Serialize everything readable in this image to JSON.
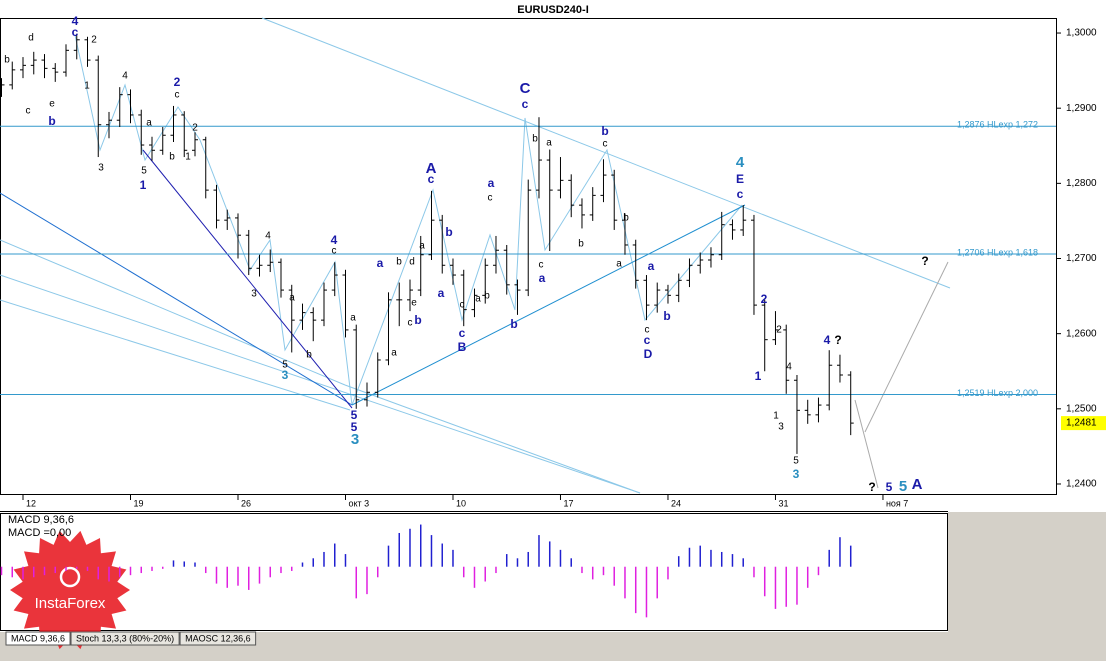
{
  "chart_data": [
    {
      "type": "ohlc",
      "title": "EURUSD240-I",
      "color": "#000000",
      "xlim": [
        -0.14,
        88.05
      ],
      "ylim": [
        1.2388,
        1.302
      ],
      "xticks": [
        {
          "value": 2,
          "label": "12"
        },
        {
          "value": 12,
          "label": "19"
        },
        {
          "value": 22,
          "label": "26"
        },
        {
          "value": 32,
          "label": "окт 3"
        },
        {
          "value": 42,
          "label": "10"
        },
        {
          "value": 52,
          "label": "17"
        },
        {
          "value": 62,
          "label": "24"
        },
        {
          "value": 72,
          "label": "31"
        },
        {
          "value": 82,
          "label": "ноя 7"
        }
      ],
      "yticks": [
        {
          "value": 1.3,
          "label": "1,3000"
        },
        {
          "value": 1.29,
          "label": "1,2900"
        },
        {
          "value": 1.28,
          "label": "1,2800"
        },
        {
          "value": 1.27,
          "label": "1,2700"
        },
        {
          "value": 1.26,
          "label": "1,2600"
        },
        {
          "value": 1.25,
          "label": "1,2500"
        },
        {
          "value": 1.24,
          "label": "1,2400"
        }
      ],
      "open": [
        1.2925,
        1.2931,
        1.2951,
        1.2957,
        1.2964,
        1.2953,
        1.2948,
        1.2977,
        1.2991,
        1.2964,
        1.2878,
        1.2884,
        1.2918,
        1.2891,
        1.2851,
        1.2844,
        1.2864,
        1.2891,
        1.2844,
        1.2858,
        1.2791,
        1.2751,
        1.2754,
        1.2731,
        1.2687,
        1.2691,
        1.2695,
        1.2658,
        1.2618,
        1.2628,
        1.2618,
        1.2658,
        1.2678,
        1.2605,
        1.2512,
        1.2522,
        1.2565,
        1.2645,
        1.2645,
        1.2658,
        1.2705,
        1.2751,
        1.2691,
        1.2678,
        1.2632,
        1.2651,
        1.2691,
        1.2711,
        1.2665,
        1.2658,
        1.2791,
        1.2831,
        1.2791,
        1.2804,
        1.2771,
        1.2758,
        1.2784,
        1.2811,
        1.2751,
        1.2718,
        1.2671,
        1.2638,
        1.2658,
        1.2651,
        1.2671,
        1.2691,
        1.2698,
        1.2705,
        1.2745,
        1.2738,
        1.2751,
        1.2638,
        1.2592,
        1.2605,
        1.2538,
        1.2498,
        1.2492,
        1.2505,
        1.2558,
        1.2545
      ],
      "high": [
        1.294,
        1.2962,
        1.2968,
        1.2975,
        1.2972,
        1.296,
        1.2985,
        1.2999,
        1.2995,
        1.297,
        1.2895,
        1.2928,
        1.2925,
        1.2898,
        1.2862,
        1.2875,
        1.2903,
        1.2896,
        1.2868,
        1.2862,
        1.2798,
        1.2765,
        1.276,
        1.2738,
        1.2705,
        1.2712,
        1.27,
        1.2665,
        1.264,
        1.2635,
        1.2668,
        1.2695,
        1.2685,
        1.2612,
        1.2535,
        1.2575,
        1.2655,
        1.2668,
        1.2672,
        1.273,
        1.279,
        1.2758,
        1.27,
        1.2685,
        1.266,
        1.27,
        1.273,
        1.2718,
        1.2672,
        1.2805,
        1.2888,
        1.2845,
        1.2835,
        1.2812,
        1.278,
        1.2795,
        1.2832,
        1.2818,
        1.276,
        1.2725,
        1.2678,
        1.2668,
        1.2665,
        1.268,
        1.27,
        1.2708,
        1.2715,
        1.2762,
        1.2752,
        1.2771,
        1.2758,
        1.2645,
        1.263,
        1.2612,
        1.2545,
        1.2512,
        1.2515,
        1.2578,
        1.2572,
        1.255
      ],
      "low": [
        1.2915,
        1.2925,
        1.294,
        1.2945,
        1.294,
        1.2935,
        1.2942,
        1.2965,
        1.2955,
        1.2835,
        1.286,
        1.2875,
        1.288,
        1.2838,
        1.283,
        1.2838,
        1.2855,
        1.2835,
        1.2836,
        1.278,
        1.274,
        1.2738,
        1.27,
        1.2678,
        1.2676,
        1.2682,
        1.2648,
        1.2575,
        1.2605,
        1.259,
        1.261,
        1.265,
        1.2595,
        1.25,
        1.2503,
        1.2515,
        1.2558,
        1.261,
        1.263,
        1.265,
        1.2698,
        1.268,
        1.2665,
        1.261,
        1.2622,
        1.264,
        1.268,
        1.2652,
        1.2625,
        1.265,
        1.278,
        1.271,
        1.278,
        1.2755,
        1.274,
        1.275,
        1.2775,
        1.2738,
        1.2705,
        1.266,
        1.2618,
        1.2628,
        1.264,
        1.2642,
        1.2662,
        1.268,
        1.2688,
        1.2698,
        1.2725,
        1.273,
        1.2625,
        1.255,
        1.2585,
        1.252,
        1.244,
        1.248,
        1.2482,
        1.2498,
        1.2535,
        1.2465
      ],
      "close": [
        1.2931,
        1.2951,
        1.2957,
        1.2964,
        1.2953,
        1.2948,
        1.2977,
        1.2991,
        1.2964,
        1.2878,
        1.2884,
        1.2918,
        1.2891,
        1.2851,
        1.2844,
        1.2864,
        1.2891,
        1.2844,
        1.2858,
        1.2791,
        1.2751,
        1.2754,
        1.2731,
        1.2687,
        1.2691,
        1.2695,
        1.2658,
        1.2618,
        1.2628,
        1.2618,
        1.2658,
        1.2678,
        1.2605,
        1.2512,
        1.2522,
        1.2565,
        1.2645,
        1.2645,
        1.2658,
        1.2705,
        1.2751,
        1.2691,
        1.2678,
        1.2632,
        1.2651,
        1.2691,
        1.2711,
        1.2665,
        1.2658,
        1.2791,
        1.2831,
        1.2791,
        1.2804,
        1.2771,
        1.2758,
        1.2784,
        1.2811,
        1.2751,
        1.2718,
        1.2671,
        1.2638,
        1.2658,
        1.2651,
        1.2671,
        1.2691,
        1.2698,
        1.2705,
        1.2745,
        1.2738,
        1.2751,
        1.2638,
        1.2592,
        1.2605,
        1.2538,
        1.2498,
        1.2492,
        1.2505,
        1.2558,
        1.2545,
        1.2481
      ],
      "current_price": {
        "value": 1.2481,
        "label": "1,2481"
      },
      "levels": [
        {
          "value": 1.2876,
          "label": "1,2876 HLexp 1,272"
        },
        {
          "value": 1.2706,
          "label": "1,2706 HLexp 1,618"
        },
        {
          "value": 1.2519,
          "label": "1,2519 HLexp 2,000"
        }
      ],
      "level_color": "#3399cc",
      "wave_labels": [
        "d",
        "b",
        "c",
        "e",
        "4",
        "c",
        "b",
        "2",
        "1",
        "4",
        "3",
        "a",
        "2",
        "c",
        "2",
        "b",
        "1",
        "5",
        "1",
        "4",
        "3",
        "a",
        "b",
        "5",
        "3",
        "4",
        "c",
        "a",
        "5",
        "5",
        "3",
        "a",
        "a",
        "b",
        "c",
        "d",
        "b",
        "e",
        "A",
        "c",
        "a",
        "b",
        "a",
        "c",
        "c",
        "B",
        "a",
        "a",
        "c",
        "b",
        "b",
        "C",
        "c",
        "b",
        "a",
        "c",
        "a",
        "b",
        "b",
        "c",
        "b",
        "a",
        "a",
        "c",
        "c",
        "b",
        "D",
        "4",
        "E",
        "c",
        "2",
        "2",
        "1",
        "1",
        "4",
        "3",
        "5",
        "3",
        "4",
        "?",
        "?",
        "?",
        "5",
        "5",
        "A"
      ]
    },
    {
      "type": "histogram_bar",
      "title": "MACD 9,36,6",
      "subtitle": "MACD =0,00",
      "ylim": [
        -0.006,
        0.005
      ],
      "pos_color": "#2020d0",
      "neg_color": "#e020e0",
      "values": [
        -0.0008,
        -0.001,
        -0.0012,
        -0.001,
        -0.0008,
        -0.0006,
        -0.0004,
        -0.0002,
        -0.0004,
        -0.0012,
        -0.0014,
        -0.001,
        -0.0008,
        -0.0006,
        -0.0004,
        -0.0002,
        0.0006,
        0.0005,
        0.0004,
        -0.0006,
        -0.0016,
        -0.002,
        -0.0018,
        -0.0022,
        -0.0016,
        -0.001,
        -0.0006,
        -0.0004,
        0.0004,
        0.0008,
        0.0014,
        0.0022,
        0.0012,
        -0.003,
        -0.0026,
        -0.001,
        0.002,
        0.0032,
        0.0036,
        0.004,
        0.003,
        0.0022,
        0.0016,
        -0.001,
        -0.002,
        -0.0014,
        -0.0006,
        0.0012,
        0.0008,
        0.0014,
        0.003,
        0.0024,
        0.0016,
        0.0008,
        -0.0006,
        -0.0012,
        -0.0008,
        -0.0018,
        -0.003,
        -0.0044,
        -0.0048,
        -0.003,
        -0.0012,
        0.001,
        0.0018,
        0.002,
        0.0016,
        0.0014,
        0.0012,
        0.0008,
        -0.001,
        -0.0028,
        -0.004,
        -0.0038,
        -0.0036,
        -0.002,
        -0.0008,
        0.0016,
        0.0028,
        0.002
      ]
    }
  ],
  "tabs": [
    "MACD 9,36,6",
    "Stoch 13,3,3 (80%-20%)",
    "MAOSC 12,36,6"
  ],
  "logo": "InstaForex"
}
